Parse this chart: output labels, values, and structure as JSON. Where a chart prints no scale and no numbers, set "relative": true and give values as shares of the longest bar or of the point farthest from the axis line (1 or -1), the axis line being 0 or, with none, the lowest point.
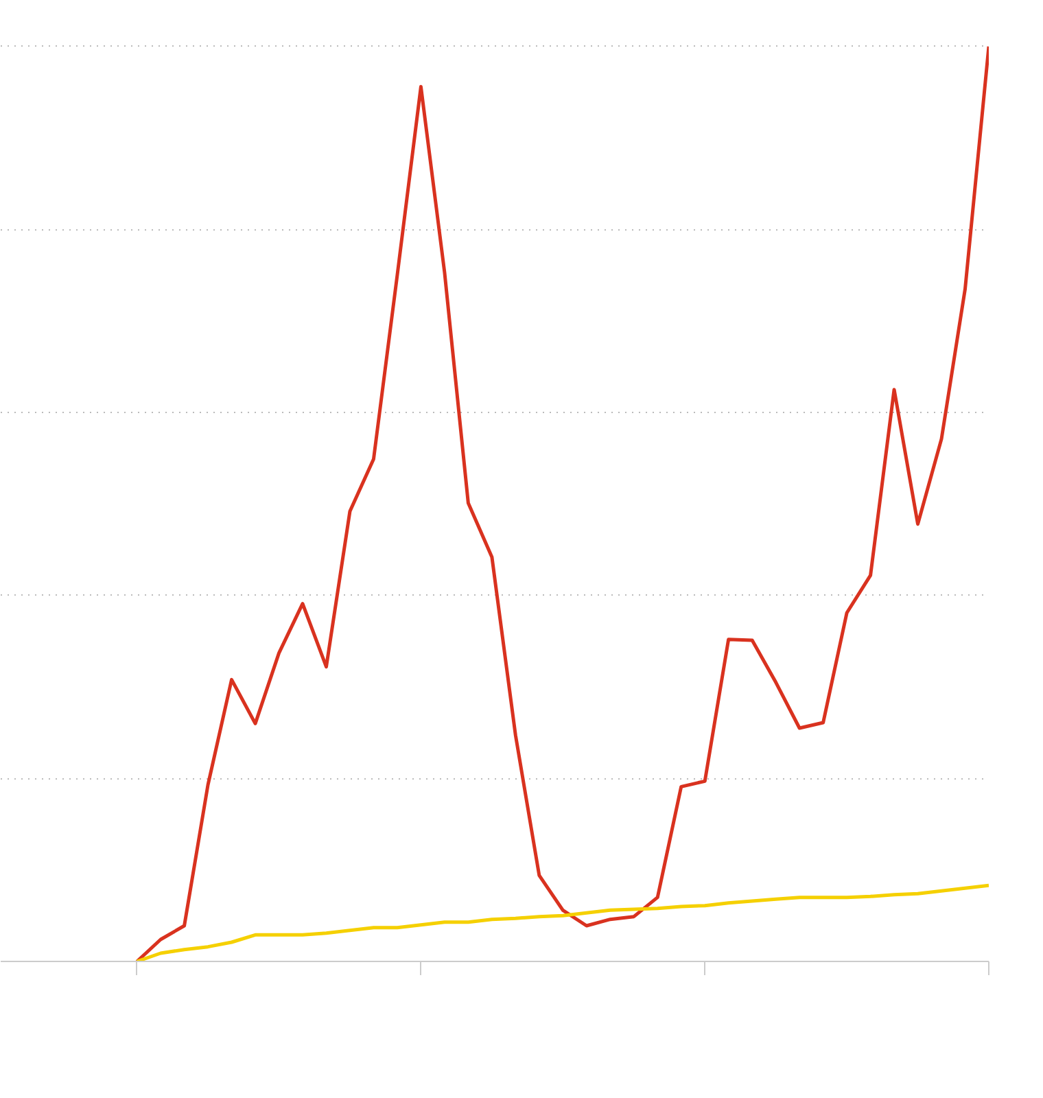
{
  "chart_data": {
    "type": "line",
    "relative": true,
    "grid": "y",
    "tick_labels": false,
    "line_style": "solid",
    "categories": [
      null,
      null,
      null,
      null,
      null,
      null,
      null,
      null,
      null,
      null,
      null,
      null,
      null,
      null,
      null,
      null,
      null,
      null,
      null,
      null,
      null,
      null,
      null,
      null,
      null,
      null,
      null,
      null,
      null,
      null,
      null,
      null,
      null,
      null,
      null,
      null,
      null
    ],
    "series": [
      {
        "color": "#d9321f",
        "values": [
          0,
          0.024,
          0.039,
          0.193,
          0.308,
          0.26,
          0.337,
          0.391,
          0.322,
          0.492,
          0.549,
          0.75,
          0.956,
          0.753,
          0.501,
          0.442,
          0.247,
          0.094,
          0.056,
          0.039,
          0.046,
          0.049,
          0.07,
          0.191,
          0.197,
          0.352,
          0.351,
          0.305,
          0.255,
          0.261,
          0.381,
          0.422,
          0.625,
          0.478,
          0.571,
          0.735,
          1
        ]
      },
      {
        "color": "#f5d000",
        "values": [
          0,
          0.009,
          0.013,
          0.016,
          0.021,
          0.029,
          0.029,
          0.029,
          0.031,
          0.034,
          0.037,
          0.037,
          0.04,
          0.043,
          0.043,
          0.046,
          0.047,
          0.049,
          0.05,
          0.053,
          0.056,
          0.057,
          0.058,
          0.06,
          0.061,
          0.064,
          0.066,
          0.068,
          0.07,
          0.07,
          0.07,
          0.071,
          0.073,
          0.074,
          0.077,
          0.08,
          0.083
        ]
      }
    ]
  }
}
